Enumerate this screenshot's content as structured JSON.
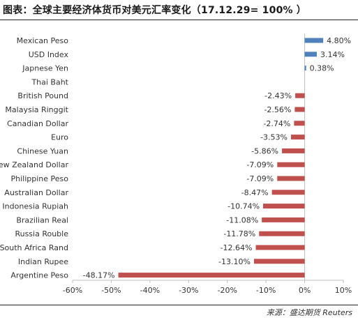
{
  "title": "图表：全球主要经济体货币对美元汇率变化（17.12.29= 100% ）",
  "source": "来源：盛达期货  Reuters",
  "chart_data": {
    "type": "bar",
    "orientation": "horizontal",
    "categories": [
      "Mexican Peso",
      "USD Index",
      "Japnese Yen",
      "Thai Baht",
      "British Pound",
      "Malaysia Ringgit",
      "Canadian Dollar",
      "Euro",
      "Chinese Yuan",
      "New Zealand Dollar",
      "Philippine Peso",
      "Australian Dollar",
      "Indonesia Rupiah",
      "Brazilian Real",
      "Russia Rouble",
      "South Africa Rand",
      "Indian Rupee",
      "Argentine Peso"
    ],
    "values": [
      4.8,
      3.14,
      0.38,
      null,
      -2.43,
      -2.56,
      -2.74,
      -3.53,
      -5.86,
      -7.09,
      -7.09,
      -8.47,
      -10.74,
      -11.08,
      -11.78,
      -12.64,
      -13.1,
      -48.17
    ],
    "value_labels": [
      "4.80%",
      "3.14%",
      "0.38%",
      "",
      "-2.43%",
      "-2.56%",
      "-2.74%",
      "-3.53%",
      "-5.86%",
      "-7.09%",
      "-7.09%",
      "-8.47%",
      "-10.74%",
      "-11.08%",
      "-11.78%",
      "-12.64%",
      "-13.10%",
      "-48.17%"
    ],
    "xlim": [
      -60,
      10
    ],
    "xticks": [
      -60,
      -50,
      -40,
      -30,
      -20,
      -10,
      0,
      10
    ],
    "xtick_labels": [
      "-60%",
      "-50%",
      "-40%",
      "-30%",
      "-20%",
      "-10%",
      "0%",
      "10%"
    ],
    "colors": {
      "positive": "#4f81bd",
      "negative": "#c0504d"
    },
    "grid": false,
    "legend": "none"
  }
}
